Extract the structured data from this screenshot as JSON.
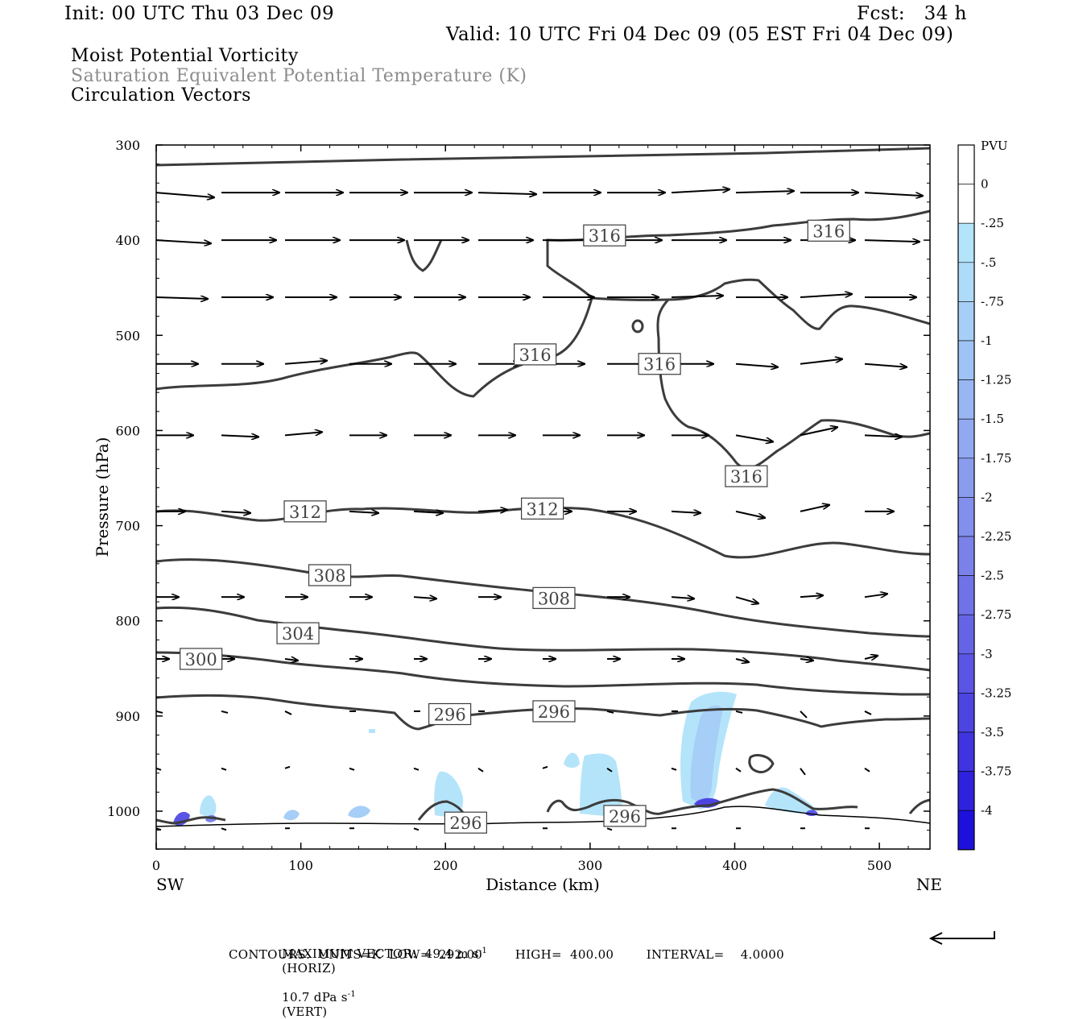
{
  "header": {
    "init": "Init: 00 UTC Thu 03 Dec 09",
    "fcst": "Fcst:   34 h",
    "valid": "Valid: 10 UTC Fri 04 Dec 09 (05 EST Fri 04 Dec 09)"
  },
  "legend_lines": {
    "line1": "Moist Potential Vorticity",
    "line2": "Saturation Equivalent Potential Temperature (K)",
    "line3": "Circulation Vectors"
  },
  "chart_data": {
    "type": "cross-section",
    "xlabel": "Distance (km)",
    "ylabel": "Pressure (hPa)",
    "x_end_labels": {
      "left": "SW",
      "right": "NE"
    },
    "xlim": [
      0,
      535
    ],
    "ylim": [
      1040,
      300
    ],
    "x_ticks": [
      "0",
      "100",
      "200",
      "300",
      "400",
      "500"
    ],
    "y_ticks": [
      "300",
      "400",
      "500",
      "600",
      "700",
      "800",
      "900",
      "1000"
    ],
    "colorbar": {
      "unit": "PVU",
      "labels": [
        "0",
        "-.25",
        "-.5",
        "-.75",
        "-1",
        "-1.25",
        "-1.5",
        "-1.75",
        "-2",
        "-2.25",
        "-2.5",
        "-2.75",
        "-3",
        "-3.25",
        "-3.5",
        "-3.75",
        "-4"
      ],
      "colors": [
        "#ffffff",
        "#ffffff",
        "#b4e4fa",
        "#aedbf8",
        "#a6cef6",
        "#9fc3f4",
        "#98b6f2",
        "#91a9f0",
        "#8a9cee",
        "#828fec",
        "#7a82ea",
        "#7073e8",
        "#6664e6",
        "#5a55e4",
        "#4d45e2",
        "#3f34e0",
        "#2f22de",
        "#1e10dc"
      ]
    },
    "contour_labels": [
      {
        "text": "316",
        "x": 310,
        "p": 395
      },
      {
        "text": "316",
        "x": 465,
        "p": 390
      },
      {
        "text": "316",
        "x": 262,
        "p": 520
      },
      {
        "text": "316",
        "x": 348,
        "p": 530
      },
      {
        "text": "316",
        "x": 408,
        "p": 648
      },
      {
        "text": "312",
        "x": 103,
        "p": 685
      },
      {
        "text": "312",
        "x": 267,
        "p": 682
      },
      {
        "text": "308",
        "x": 120,
        "p": 752
      },
      {
        "text": "308",
        "x": 275,
        "p": 776
      },
      {
        "text": "304",
        "x": 98,
        "p": 813
      },
      {
        "text": "300",
        "x": 31,
        "p": 840
      },
      {
        "text": "296",
        "x": 203,
        "p": 898
      },
      {
        "text": "296",
        "x": 275,
        "p": 895
      },
      {
        "text": "296",
        "x": 214,
        "p": 1012
      },
      {
        "text": "296",
        "x": 324,
        "p": 1005
      }
    ],
    "footer": {
      "max_vector": "MAXIMUM VECTOR:  49.4 m s",
      "horiz": "(HORIZ)",
      "vert_val": "10.7 dPa s",
      "vert": "(VERT)",
      "exp": "-1",
      "contours": "CONTOURS:  UNITS=K  LOW=  292.00        HIGH=  400.00        INTERVAL=    4.0000"
    }
  }
}
